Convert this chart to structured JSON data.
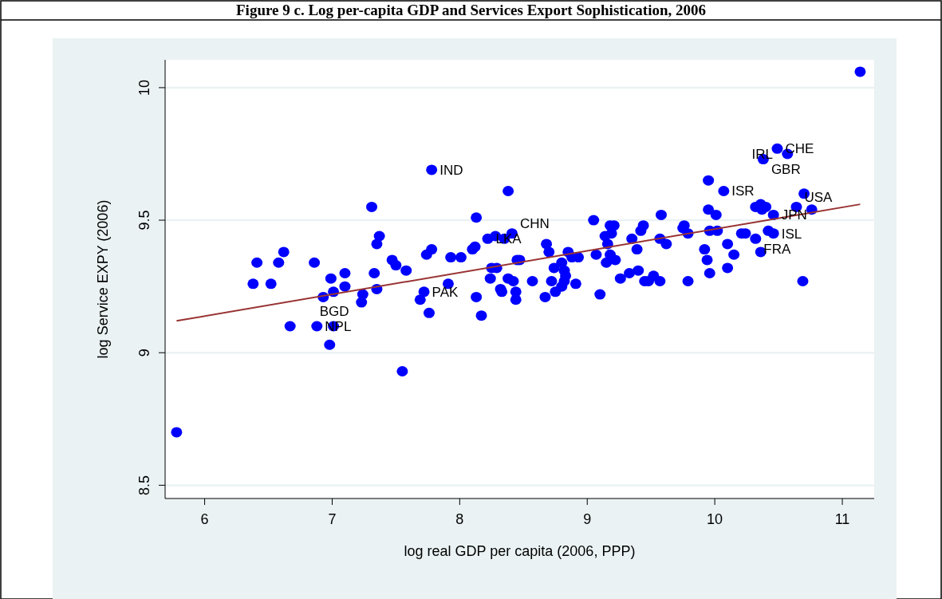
{
  "chart_data": {
    "type": "scatter",
    "title": "Figure 9 c. Log per-capita GDP and Services Export Sophistication, 2006",
    "xlabel": "log real GDP per capita (2006, PPP)",
    "ylabel": "log Service EXPY (2006)",
    "xlim": [
      5.69,
      11.25
    ],
    "ylim": [
      8.45,
      10.105
    ],
    "xticks": [
      6,
      7,
      8,
      9,
      10,
      11
    ],
    "yticks": [
      8.5,
      9,
      9.5,
      10
    ],
    "grid": "y",
    "series": [
      {
        "marker": "circle",
        "color": "#0000ff",
        "x": [
          5.78,
          6.38,
          6.41,
          6.52,
          6.58,
          6.62,
          6.67,
          6.88,
          7.01,
          6.98,
          6.86,
          6.99,
          7.01,
          6.93,
          7.1,
          7.1,
          7.24,
          7.23,
          7.31,
          7.37,
          7.35,
          7.33,
          7.35,
          7.47,
          7.5,
          7.58,
          7.55,
          7.69,
          7.72,
          7.76,
          7.74,
          7.78,
          7.78,
          7.91,
          7.93,
          8.01,
          8.12,
          8.1,
          8.13,
          8.13,
          8.17,
          8.22,
          8.28,
          8.35,
          8.41,
          8.38,
          8.24,
          8.25,
          8.29,
          8.32,
          8.33,
          8.38,
          8.42,
          8.44,
          8.44,
          8.45,
          8.47,
          8.57,
          8.67,
          8.68,
          8.7,
          8.72,
          8.74,
          8.75,
          8.8,
          8.82,
          8.83,
          8.82,
          8.8,
          8.85,
          8.88,
          8.91,
          8.93,
          9.05,
          9.07,
          9.1,
          9.14,
          9.18,
          9.21,
          9.19,
          9.16,
          9.18,
          9.15,
          9.22,
          9.26,
          9.33,
          9.35,
          9.39,
          9.4,
          9.42,
          9.44,
          9.45,
          9.48,
          9.52,
          9.57,
          9.57,
          9.58,
          9.62,
          9.75,
          9.76,
          9.79,
          9.79,
          9.92,
          9.94,
          9.95,
          9.95,
          9.96,
          9.96,
          10.01,
          10.02,
          10.07,
          10.1,
          10.1,
          10.15,
          10.21,
          10.24,
          10.32,
          10.32,
          10.36,
          10.36,
          10.37,
          10.38,
          10.4,
          10.42,
          10.46,
          10.46,
          10.49,
          10.57,
          10.64,
          10.69,
          10.7,
          10.76,
          11.14
        ],
        "values": [
          8.7,
          9.26,
          9.34,
          9.26,
          9.34,
          9.38,
          9.1,
          9.1,
          9.1,
          9.03,
          9.34,
          9.28,
          9.23,
          9.21,
          9.3,
          9.25,
          9.22,
          9.19,
          9.55,
          9.44,
          9.41,
          9.3,
          9.24,
          9.35,
          9.33,
          9.31,
          8.93,
          9.2,
          9.23,
          9.15,
          9.37,
          9.39,
          9.69,
          9.26,
          9.36,
          9.36,
          9.4,
          9.39,
          9.21,
          9.51,
          9.14,
          9.43,
          9.44,
          9.43,
          9.45,
          9.61,
          9.28,
          9.32,
          9.32,
          9.24,
          9.23,
          9.28,
          9.27,
          9.23,
          9.2,
          9.35,
          9.35,
          9.27,
          9.21,
          9.41,
          9.38,
          9.27,
          9.32,
          9.23,
          9.34,
          9.31,
          9.29,
          9.27,
          9.25,
          9.38,
          9.36,
          9.26,
          9.36,
          9.5,
          9.37,
          9.22,
          9.44,
          9.48,
          9.48,
          9.45,
          9.41,
          9.37,
          9.34,
          9.35,
          9.28,
          9.3,
          9.43,
          9.39,
          9.31,
          9.46,
          9.48,
          9.27,
          9.27,
          9.29,
          9.27,
          9.43,
          9.52,
          9.41,
          9.47,
          9.48,
          9.27,
          9.45,
          9.39,
          9.35,
          9.65,
          9.54,
          9.3,
          9.46,
          9.52,
          9.46,
          9.61,
          9.41,
          9.32,
          9.37,
          9.45,
          9.45,
          9.55,
          9.43,
          9.56,
          9.38,
          9.54,
          9.73,
          9.55,
          9.46,
          9.52,
          9.45,
          9.77,
          9.75,
          9.55,
          9.27,
          9.6,
          9.54,
          10.06
        ]
      },
      {
        "type": "line",
        "marker": "none",
        "color": "#993333",
        "x": [
          5.78,
          11.14
        ],
        "values": [
          9.12,
          9.56
        ]
      }
    ],
    "annotations": [
      {
        "text": "IND",
        "x": 7.78,
        "y": 9.69
      },
      {
        "text": "PAK",
        "x": 7.72,
        "y": 9.23
      },
      {
        "text": "NPL",
        "x": 6.88,
        "y": 9.1
      },
      {
        "text": "BGD",
        "x": 7.01,
        "y": 9.1
      },
      {
        "text": "LKA",
        "x": 8.22,
        "y": 9.43
      },
      {
        "text": "CHN",
        "x": 8.41,
        "y": 9.45
      },
      {
        "text": "CHE",
        "x": 10.49,
        "y": 9.77
      },
      {
        "text": "GBR",
        "x": 10.38,
        "y": 9.73
      },
      {
        "text": "IRL",
        "x": 10.57,
        "y": 9.75
      },
      {
        "text": "ISR",
        "x": 10.07,
        "y": 9.61
      },
      {
        "text": "JPN",
        "x": 10.46,
        "y": 9.52
      },
      {
        "text": "USA",
        "x": 10.64,
        "y": 9.55
      },
      {
        "text": "ISL",
        "x": 10.46,
        "y": 9.45
      },
      {
        "text": "FRA",
        "x": 10.32,
        "y": 9.43
      }
    ]
  }
}
